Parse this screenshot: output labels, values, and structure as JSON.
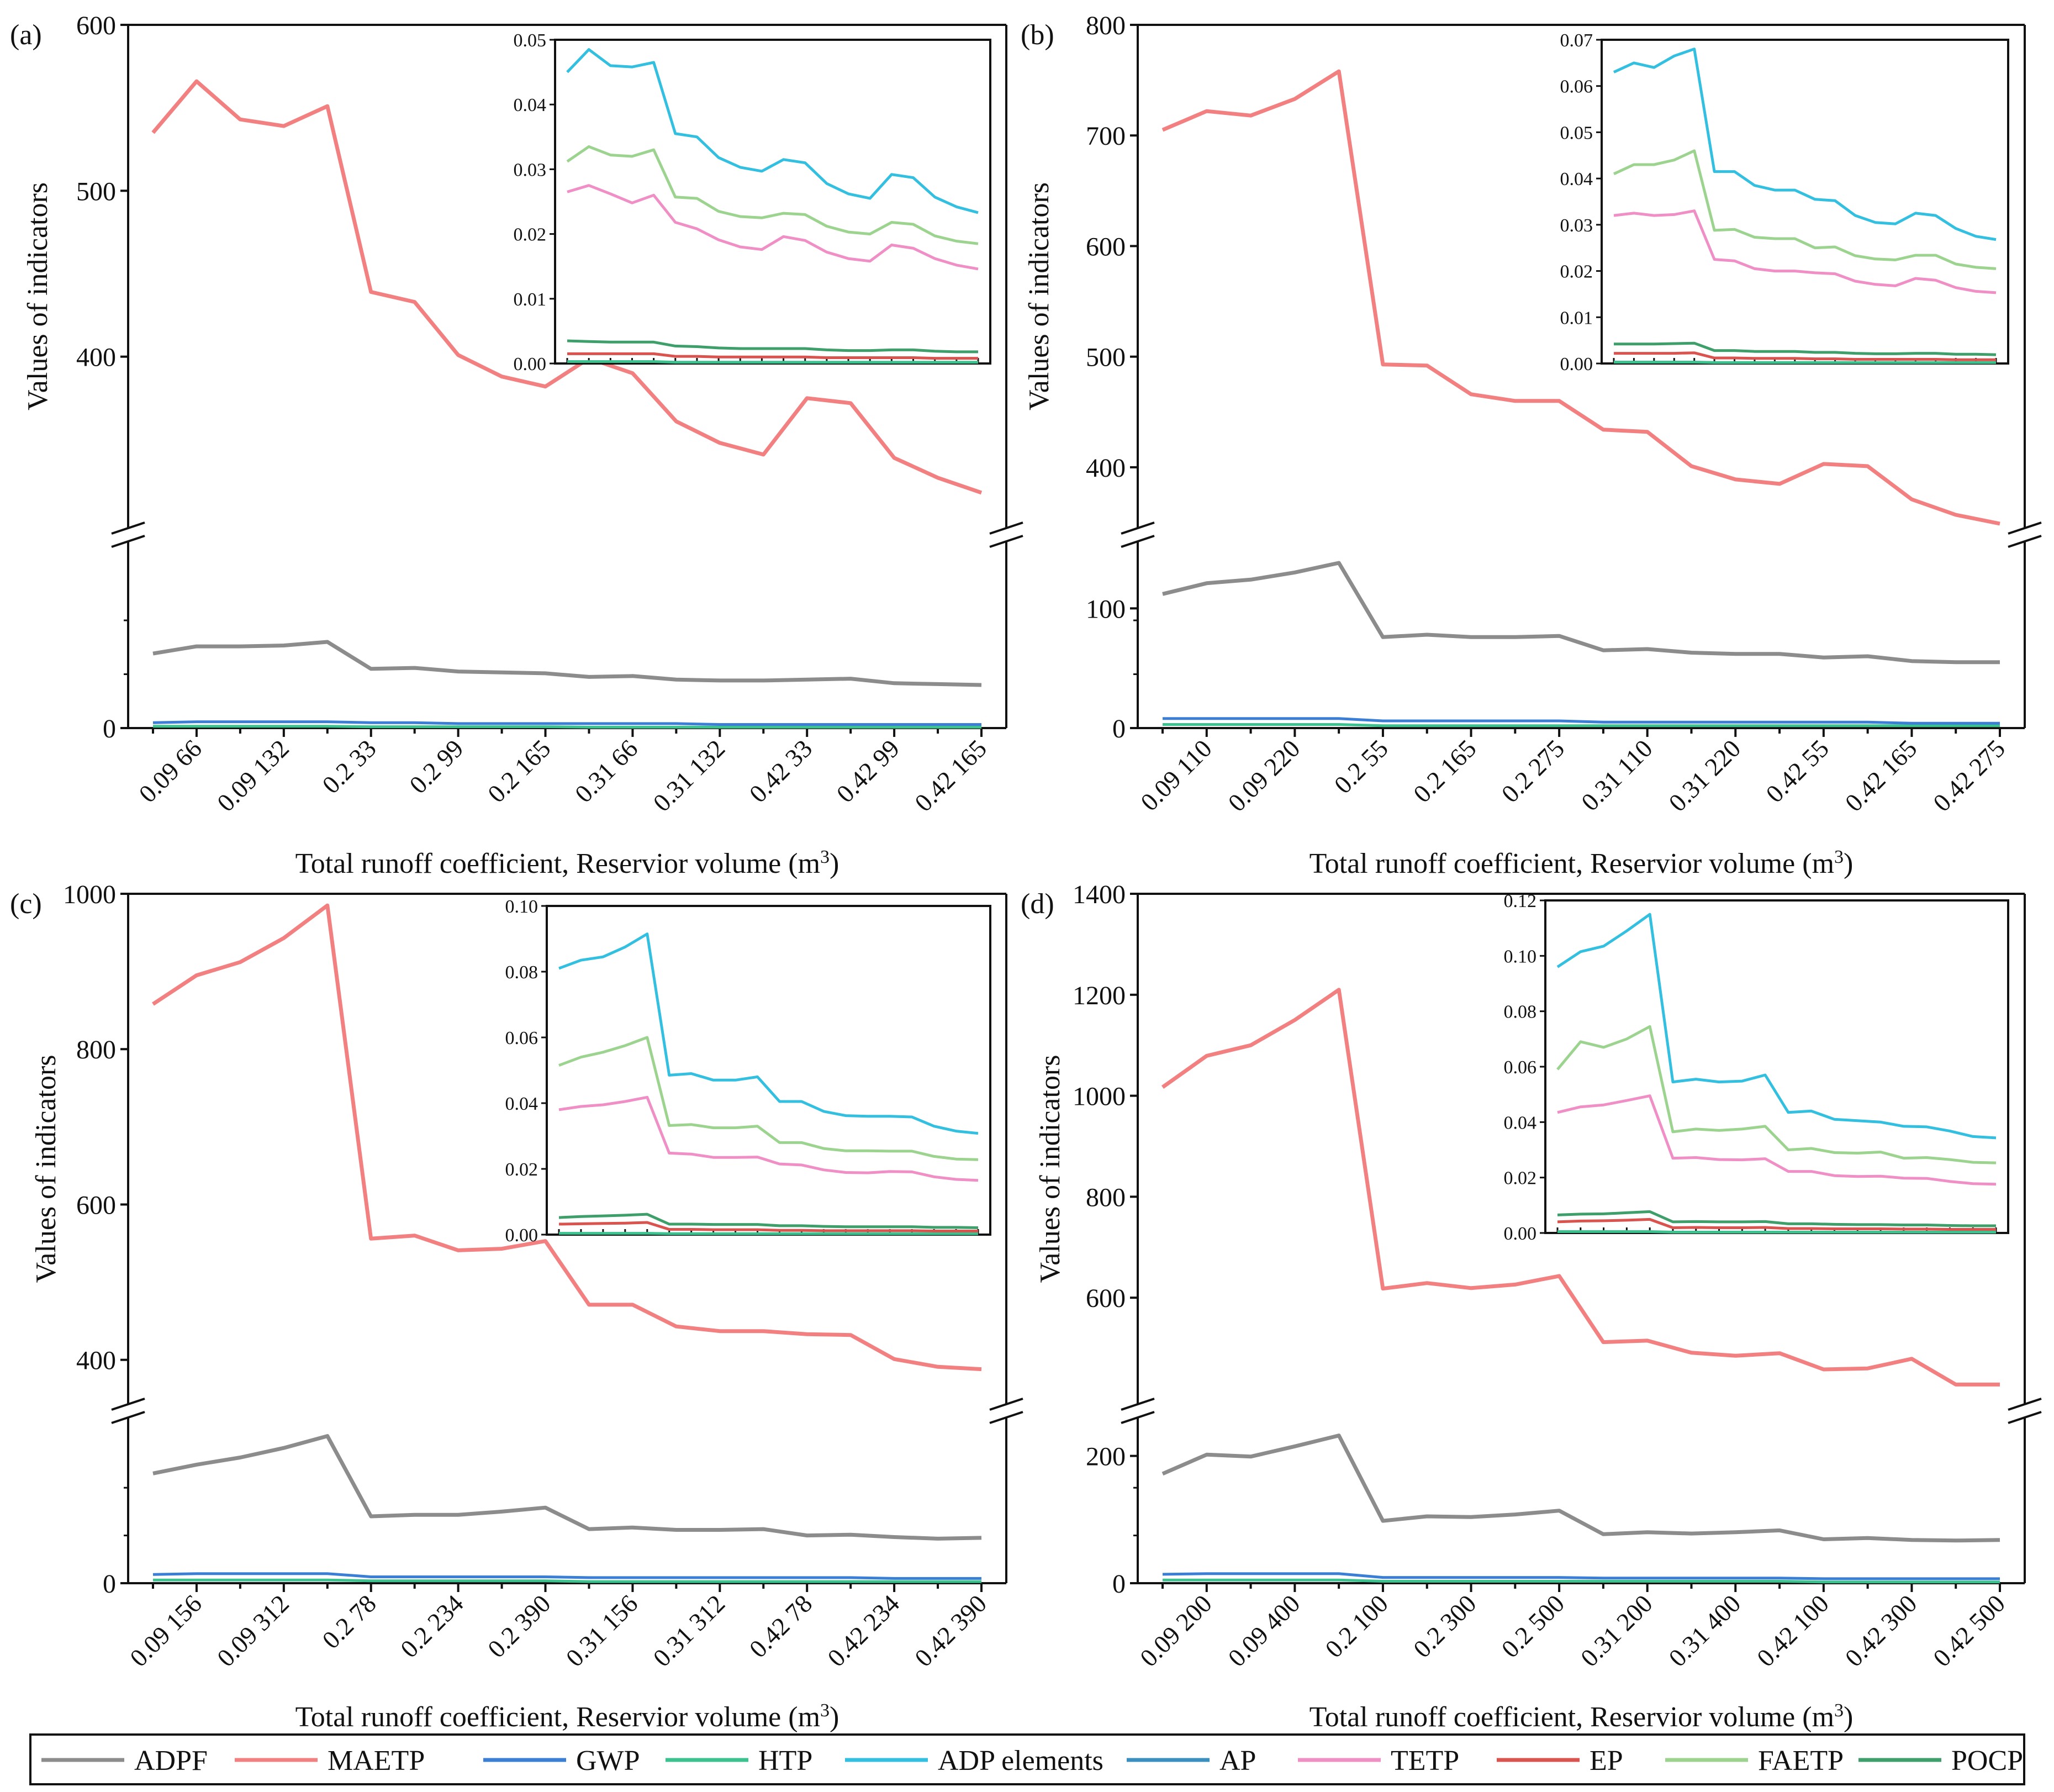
{
  "figure": {
    "xlabel_prefix": "Total runoff coefficient, Reservior volume (m",
    "xlabel_sup": "3",
    "xlabel_suffix": ")",
    "ylabel": "Values of indicators"
  },
  "legend": {
    "entries": [
      {
        "name": "ADPF",
        "color": "#8c8c8c"
      },
      {
        "name": "MAETP",
        "color": "#f28080"
      },
      {
        "name": "GWP",
        "color": "#3a7fd5"
      },
      {
        "name": "HTP",
        "color": "#3cc28f"
      },
      {
        "name": "ADP elements",
        "color": "#33bfe0"
      },
      {
        "name": "AP",
        "color": "#3a8fbf"
      },
      {
        "name": "TETP",
        "color": "#ef8fc6"
      },
      {
        "name": "EP",
        "color": "#d9534f"
      },
      {
        "name": "FAETP",
        "color": "#9bd38f"
      },
      {
        "name": "POCP",
        "color": "#3f9f6a"
      }
    ]
  },
  "chart_data": [
    {
      "panel": "(a)",
      "type": "line",
      "x_axis_break": false,
      "y_lower": {
        "range": [
          0,
          200
        ],
        "ticks": [
          "0"
        ]
      },
      "y_upper": {
        "range": [
          300,
          600
        ],
        "ticks": [
          "400",
          "500",
          "600"
        ]
      },
      "x_tick_labels": [
        "0.09 66",
        "0.09 132",
        "0.2 33",
        "0.2 99",
        "0.2 165",
        "0.31 66",
        "0.31 132",
        "0.42 33",
        "0.42 99",
        "0.42 165"
      ],
      "series": {
        "ADPF": [
          83,
          91,
          91,
          92,
          96,
          66,
          67,
          63,
          62,
          61,
          57,
          58,
          54,
          53,
          53,
          54,
          55,
          50,
          49,
          48
        ],
        "MAETP": [
          535,
          566,
          543,
          539,
          551,
          439,
          433,
          401,
          388,
          382,
          399,
          390,
          361,
          348,
          341,
          375,
          372,
          339,
          327,
          318
        ],
        "GWP": [
          6,
          7,
          7,
          7,
          7,
          6,
          6,
          5,
          5,
          5,
          5,
          5,
          5,
          4,
          4,
          4,
          4,
          4,
          4,
          4
        ],
        "low_group": [
          2,
          2,
          2,
          2,
          2,
          1.5,
          1.5,
          1.5,
          1.5,
          1.5,
          1,
          1,
          1,
          1,
          1,
          1,
          1,
          1,
          1,
          1
        ]
      },
      "inset": {
        "ylim": [
          0,
          0.05
        ],
        "ticks": [
          "0.00",
          "0.01",
          "0.02",
          "0.03",
          "0.04",
          "0.05"
        ],
        "series": {
          "ADP elements": [
            0.045,
            0.0485,
            0.046,
            0.0458,
            0.0465,
            0.0355,
            0.035,
            0.0318,
            0.0303,
            0.0297,
            0.0315,
            0.031,
            0.0278,
            0.0262,
            0.0255,
            0.0292,
            0.0287,
            0.0257,
            0.0242,
            0.0233
          ],
          "FAETP": [
            0.0312,
            0.0335,
            0.0322,
            0.032,
            0.033,
            0.0257,
            0.0255,
            0.0235,
            0.0227,
            0.0225,
            0.0232,
            0.023,
            0.0212,
            0.0203,
            0.02,
            0.0218,
            0.0215,
            0.0197,
            0.0189,
            0.0185
          ],
          "TETP": [
            0.0265,
            0.0275,
            0.0262,
            0.0248,
            0.026,
            0.0218,
            0.0208,
            0.0191,
            0.018,
            0.0176,
            0.0196,
            0.019,
            0.0172,
            0.0162,
            0.0158,
            0.0183,
            0.0178,
            0.0162,
            0.0152,
            0.0146
          ],
          "POCP": [
            0.0035,
            0.0034,
            0.0033,
            0.0033,
            0.0033,
            0.0027,
            0.0026,
            0.0024,
            0.0023,
            0.0023,
            0.0023,
            0.0023,
            0.0021,
            0.002,
            0.002,
            0.0021,
            0.0021,
            0.0019,
            0.0018,
            0.0018
          ],
          "EP": [
            0.0015,
            0.0015,
            0.0015,
            0.0015,
            0.0015,
            0.0011,
            0.0011,
            0.001,
            0.001,
            0.001,
            0.001,
            0.001,
            0.0009,
            0.0009,
            0.0009,
            0.0009,
            0.0009,
            0.0008,
            0.0008,
            0.0008
          ],
          "HTP": [
            0.0003,
            0.0003,
            0.0003,
            0.0003,
            0.0003,
            0.0002,
            0.0002,
            0.0002,
            0.0002,
            0.0002,
            0.0002,
            0.0002,
            0.0002,
            0.0002,
            0.0002,
            0.0002,
            0.0002,
            0.0002,
            0.0002,
            0.0002
          ]
        }
      }
    },
    {
      "panel": "(b)",
      "type": "line",
      "y_lower": {
        "range": [
          0,
          150
        ],
        "ticks": [
          "0",
          "100"
        ]
      },
      "y_upper": {
        "range": [
          350,
          800
        ],
        "ticks": [
          "400",
          "500",
          "600",
          "700",
          "800"
        ]
      },
      "x_tick_labels": [
        "0.09 110",
        "0.09 220",
        "0.2 55",
        "0.2 165",
        "0.2 275",
        "0.31 110",
        "0.31 220",
        "0.42 55",
        "0.42 165",
        "0.42 275"
      ],
      "series": {
        "ADPF": [
          112,
          121,
          124,
          130,
          138,
          76,
          78,
          76,
          76,
          77,
          65,
          66,
          63,
          62,
          62,
          59,
          60,
          56,
          55,
          55
        ],
        "MAETP": [
          705,
          722,
          718,
          733,
          758,
          493,
          492,
          466,
          460,
          460,
          434,
          432,
          401,
          389,
          385,
          403,
          401,
          371,
          357,
          349
        ],
        "GWP": [
          8,
          8,
          8,
          8,
          8,
          6,
          6,
          6,
          6,
          6,
          5,
          5,
          5,
          5,
          5,
          5,
          5,
          4,
          4,
          4
        ],
        "low_group": [
          3,
          3,
          3,
          3,
          3,
          2,
          2,
          2,
          2,
          2,
          2,
          2,
          2,
          2,
          2,
          2,
          2,
          2,
          2,
          2
        ]
      },
      "inset": {
        "ylim": [
          0,
          0.07
        ],
        "ticks": [
          "0.00",
          "0.01",
          "0.02",
          "0.03",
          "0.04",
          "0.05",
          "0.06",
          "0.07"
        ],
        "series": {
          "ADP elements": [
            0.063,
            0.065,
            0.064,
            0.0665,
            0.068,
            0.0415,
            0.0415,
            0.0385,
            0.0375,
            0.0375,
            0.0355,
            0.0352,
            0.032,
            0.0305,
            0.0302,
            0.0325,
            0.032,
            0.0292,
            0.0275,
            0.0268
          ],
          "FAETP": [
            0.041,
            0.043,
            0.043,
            0.044,
            0.046,
            0.0288,
            0.029,
            0.0273,
            0.027,
            0.027,
            0.025,
            0.0252,
            0.0233,
            0.0226,
            0.0224,
            0.0234,
            0.0234,
            0.0215,
            0.0208,
            0.0205
          ],
          "TETP": [
            0.032,
            0.0325,
            0.032,
            0.0322,
            0.033,
            0.0225,
            0.0222,
            0.0205,
            0.02,
            0.02,
            0.0196,
            0.0194,
            0.0178,
            0.0171,
            0.0168,
            0.0184,
            0.018,
            0.0164,
            0.0156,
            0.0153
          ],
          "POCP": [
            0.0042,
            0.0042,
            0.0042,
            0.0043,
            0.0044,
            0.0028,
            0.0028,
            0.0026,
            0.0026,
            0.0026,
            0.0024,
            0.0024,
            0.0022,
            0.0021,
            0.0021,
            0.0022,
            0.0022,
            0.002,
            0.002,
            0.0019
          ],
          "EP": [
            0.0022,
            0.0022,
            0.0022,
            0.0022,
            0.0023,
            0.0012,
            0.0012,
            0.0011,
            0.0011,
            0.0011,
            0.001,
            0.001,
            0.0009,
            0.0009,
            0.0009,
            0.0009,
            0.0009,
            0.0008,
            0.0008,
            0.0008
          ],
          "HTP": [
            0.0003,
            0.0003,
            0.0003,
            0.0003,
            0.0003,
            0.0002,
            0.0002,
            0.0002,
            0.0002,
            0.0002,
            0.0002,
            0.0002,
            0.0002,
            0.0002,
            0.0002,
            0.0002,
            0.0002,
            0.0002,
            0.0002,
            0.0002
          ]
        }
      }
    },
    {
      "panel": "(c)",
      "type": "line",
      "y_lower": {
        "range": [
          0,
          200
        ],
        "ticks": [
          "0"
        ]
      },
      "y_upper": {
        "range": [
          350,
          1000
        ],
        "ticks": [
          "400",
          "600",
          "800",
          "1000"
        ]
      },
      "x_tick_labels": [
        "0.09 156",
        "0.09 312",
        "0.2 78",
        "0.2 234",
        "0.2 390",
        "0.31 156",
        "0.31 312",
        "0.42 78",
        "0.42 234",
        "0.42 390"
      ],
      "series": {
        "ADPF": [
          138,
          149,
          158,
          170,
          185,
          84,
          86,
          86,
          90,
          95,
          68,
          70,
          67,
          67,
          68,
          60,
          61,
          58,
          56,
          57
        ],
        "MAETP": [
          858,
          895,
          912,
          943,
          985,
          556,
          560,
          541,
          543,
          553,
          471,
          471,
          443,
          437,
          437,
          433,
          432,
          401,
          391,
          388
        ],
        "GWP": [
          11,
          12,
          12,
          12,
          12,
          8,
          8,
          8,
          8,
          8,
          7,
          7,
          7,
          7,
          7,
          7,
          7,
          6,
          6,
          6
        ],
        "low_group": [
          4,
          4,
          4,
          4,
          4,
          3,
          3,
          3,
          3,
          3,
          2,
          2,
          2,
          2,
          2,
          2,
          2,
          2,
          2,
          2
        ]
      },
      "inset": {
        "ylim": [
          0,
          0.1
        ],
        "ticks": [
          "0.00",
          "0.02",
          "0.04",
          "0.06",
          "0.08",
          "0.10"
        ],
        "series": {
          "ADP elements": [
            0.081,
            0.0835,
            0.0845,
            0.0875,
            0.0915,
            0.0485,
            0.049,
            0.047,
            0.047,
            0.048,
            0.0405,
            0.0405,
            0.0375,
            0.0362,
            0.036,
            0.036,
            0.0358,
            0.033,
            0.0315,
            0.0308
          ],
          "FAETP": [
            0.0515,
            0.054,
            0.0555,
            0.0575,
            0.06,
            0.0332,
            0.0335,
            0.0325,
            0.0325,
            0.033,
            0.028,
            0.028,
            0.0262,
            0.0255,
            0.0255,
            0.0254,
            0.0254,
            0.0238,
            0.023,
            0.0228
          ],
          "TETP": [
            0.038,
            0.039,
            0.0395,
            0.0405,
            0.0418,
            0.0248,
            0.0245,
            0.0235,
            0.0235,
            0.0236,
            0.0215,
            0.0212,
            0.0197,
            0.0189,
            0.0188,
            0.0192,
            0.0191,
            0.0176,
            0.0168,
            0.0165
          ],
          "POCP": [
            0.0052,
            0.0055,
            0.0057,
            0.0059,
            0.0062,
            0.0032,
            0.0032,
            0.0031,
            0.0031,
            0.0031,
            0.0027,
            0.0027,
            0.0025,
            0.0024,
            0.0024,
            0.0024,
            0.0024,
            0.0022,
            0.0022,
            0.0021
          ],
          "EP": [
            0.0032,
            0.0033,
            0.0034,
            0.0035,
            0.0037,
            0.0016,
            0.0016,
            0.0015,
            0.0015,
            0.0015,
            0.0013,
            0.0013,
            0.0012,
            0.0012,
            0.0012,
            0.0012,
            0.0012,
            0.0011,
            0.0011,
            0.0011
          ],
          "HTP": [
            0.0004,
            0.0004,
            0.0004,
            0.0004,
            0.0004,
            0.0003,
            0.0003,
            0.0003,
            0.0003,
            0.0003,
            0.0003,
            0.0003,
            0.0003,
            0.0003,
            0.0003,
            0.0003,
            0.0003,
            0.0003,
            0.0003,
            0.0003
          ]
        }
      }
    },
    {
      "panel": "(d)",
      "type": "line",
      "y_lower": {
        "range": [
          0,
          250
        ],
        "ticks": [
          "0",
          "200"
        ]
      },
      "y_upper": {
        "range": [
          400,
          1400
        ],
        "ticks": [
          "600",
          "800",
          "1000",
          "1200",
          "1400"
        ]
      },
      "x_tick_labels": [
        "0.09 200",
        "0.09 400",
        "0.2 100",
        "0.2 300",
        "0.2 500",
        "0.31 200",
        "0.31 400",
        "0.42 100",
        "0.42 300",
        "0.42 500"
      ],
      "series": {
        "ADPF": [
          172,
          202,
          199,
          215,
          232,
          98,
          105,
          104,
          108,
          114,
          77,
          80,
          78,
          80,
          83,
          69,
          71,
          68,
          67,
          68
        ],
        "MAETP": [
          1017,
          1079,
          1100,
          1150,
          1210,
          618,
          629,
          619,
          626,
          643,
          512,
          515,
          491,
          485,
          490,
          458,
          460,
          479,
          428,
          428
        ],
        "GWP": [
          14,
          15,
          15,
          15,
          15,
          9,
          9,
          9,
          9,
          9,
          8,
          8,
          8,
          8,
          8,
          7,
          7,
          7,
          7,
          7
        ],
        "low_group": [
          5,
          5,
          5,
          5,
          5,
          3,
          3,
          3,
          3,
          3,
          3,
          3,
          3,
          3,
          3,
          2,
          2,
          2,
          2,
          2
        ]
      },
      "inset": {
        "ylim": [
          0,
          0.12
        ],
        "ticks": [
          "0.00",
          "0.02",
          "0.04",
          "0.06",
          "0.08",
          "0.10",
          "0.12"
        ],
        "series": {
          "ADP elements": [
            0.096,
            0.1015,
            0.1035,
            0.109,
            0.115,
            0.0545,
            0.0555,
            0.0545,
            0.0548,
            0.057,
            0.0435,
            0.044,
            0.041,
            0.0405,
            0.04,
            0.0385,
            0.0383,
            0.0368,
            0.0348,
            0.0343
          ],
          "FAETP": [
            0.059,
            0.069,
            0.067,
            0.07,
            0.0745,
            0.0365,
            0.0375,
            0.037,
            0.0375,
            0.0385,
            0.03,
            0.0305,
            0.029,
            0.0288,
            0.0292,
            0.027,
            0.0272,
            0.0265,
            0.0255,
            0.0253
          ],
          "TETP": [
            0.0435,
            0.0455,
            0.0462,
            0.0478,
            0.0495,
            0.027,
            0.0272,
            0.0265,
            0.0264,
            0.0268,
            0.0222,
            0.0222,
            0.0207,
            0.0204,
            0.0205,
            0.0198,
            0.0197,
            0.0186,
            0.0178,
            0.0176
          ],
          "POCP": [
            0.0065,
            0.0068,
            0.0069,
            0.0073,
            0.0077,
            0.004,
            0.0041,
            0.004,
            0.004,
            0.0041,
            0.0033,
            0.0033,
            0.0031,
            0.003,
            0.003,
            0.0029,
            0.0029,
            0.0027,
            0.0026,
            0.0026
          ],
          "EP": [
            0.004,
            0.0043,
            0.0044,
            0.0046,
            0.0049,
            0.0019,
            0.002,
            0.0019,
            0.0019,
            0.002,
            0.0016,
            0.0016,
            0.0015,
            0.0015,
            0.0015,
            0.0014,
            0.0014,
            0.0013,
            0.0013,
            0.0013
          ],
          "HTP": [
            0.0005,
            0.0005,
            0.0005,
            0.0005,
            0.0005,
            0.0003,
            0.0003,
            0.0003,
            0.0003,
            0.0003,
            0.0003,
            0.0003,
            0.0003,
            0.0003,
            0.0003,
            0.0003,
            0.0003,
            0.0003,
            0.0003,
            0.0003
          ]
        }
      }
    }
  ]
}
